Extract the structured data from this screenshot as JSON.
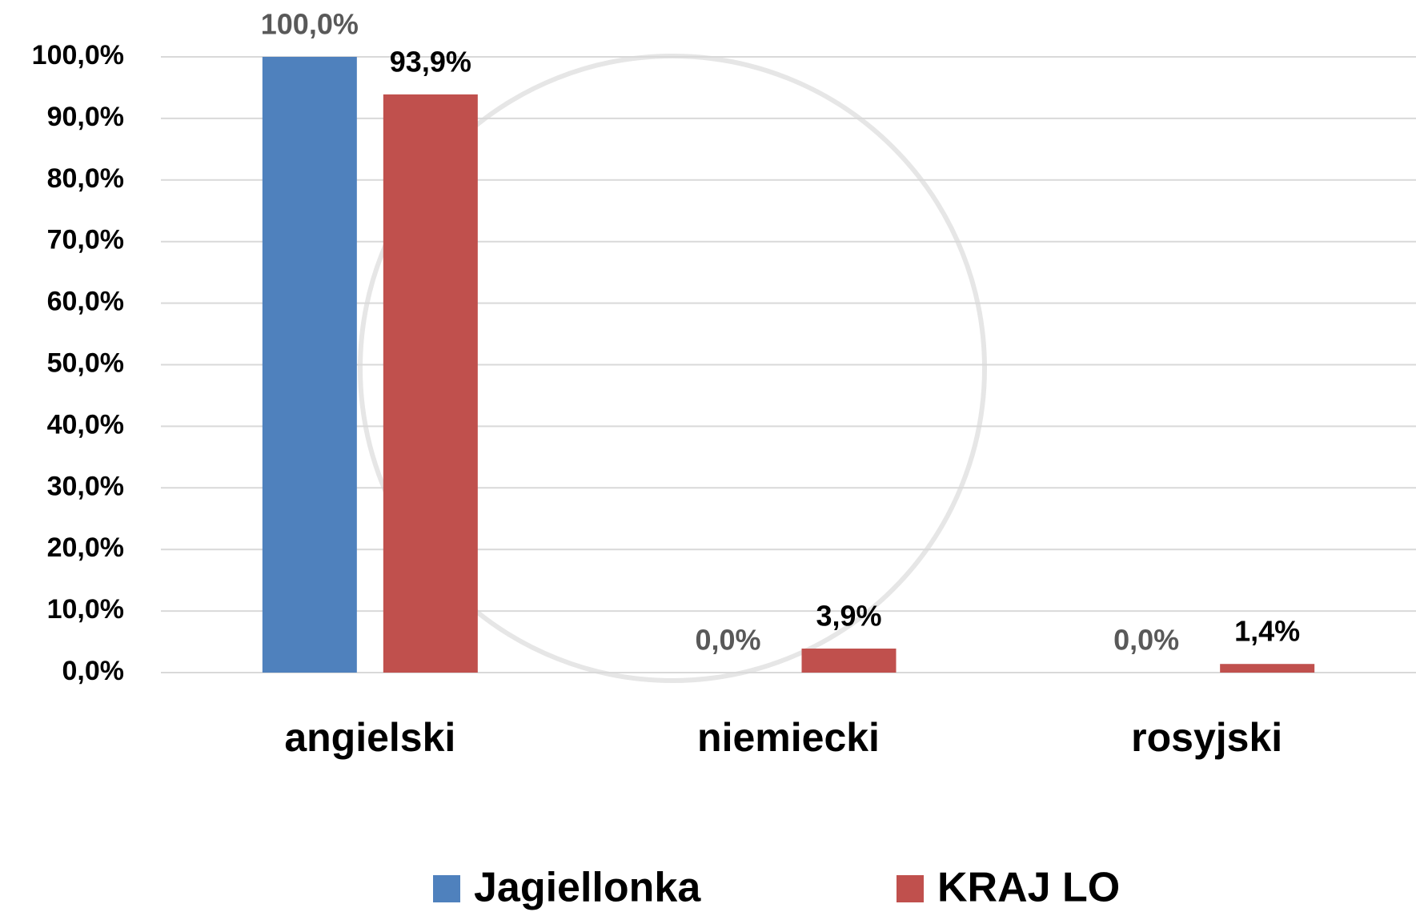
{
  "chart_data": {
    "type": "bar",
    "categories": [
      "angielski",
      "niemiecki",
      "rosyjski"
    ],
    "series": [
      {
        "name": "Jagiellonka",
        "color": "#4f81bd",
        "values": [
          100,
          0,
          0
        ],
        "value_labels": [
          "100,0%",
          "0,0%",
          "0,0%"
        ]
      },
      {
        "name": "KRAJ LO",
        "color": "#c0504d",
        "values": [
          93.9,
          3.9,
          1.4
        ],
        "value_labels": [
          "93,9%",
          "3,9%",
          "1,4%"
        ]
      }
    ],
    "ylim": [
      0,
      100
    ],
    "yticks": [
      {
        "value": 0,
        "label": "0,0%"
      },
      {
        "value": 10,
        "label": "10,0%"
      },
      {
        "value": 20,
        "label": "20,0%"
      },
      {
        "value": 30,
        "label": "30,0%"
      },
      {
        "value": 40,
        "label": "40,0%"
      },
      {
        "value": 50,
        "label": "50,0%"
      },
      {
        "value": 60,
        "label": "60,0%"
      },
      {
        "value": 70,
        "label": "70,0%"
      },
      {
        "value": 80,
        "label": "80,0%"
      },
      {
        "value": 90,
        "label": "90,0%"
      },
      {
        "value": 100,
        "label": "100,0%"
      }
    ],
    "grid": true,
    "legend": "bottom"
  }
}
